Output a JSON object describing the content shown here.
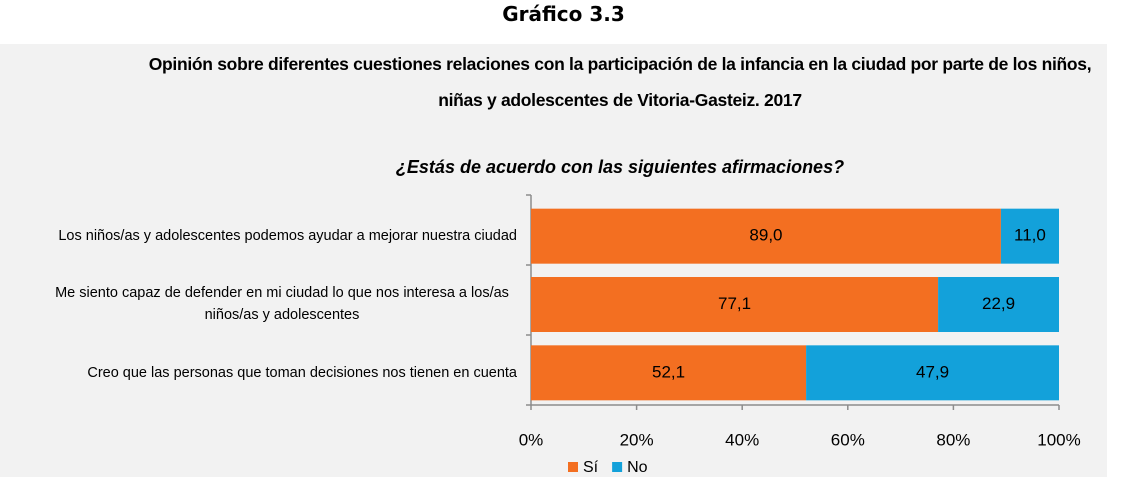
{
  "chart_data": {
    "type": "stacked-bar-horizontal",
    "header": "Gráfico 3.3",
    "title": "Opinión sobre diferentes cuestiones relaciones con la participación de la infancia en la ciudad por parte de los niños, niñas y adolescentes de Vitoria-Gasteiz. 2017",
    "subtitle": "¿Estás de acuerdo con las siguientes afirmaciones?",
    "categories": [
      "Los niños/as y adolescentes podemos ayudar a mejorar nuestra ciudad",
      "Me siento capaz de defender en mi ciudad lo que nos interesa a los/as niños/as y adolescentes",
      "Creo que las personas que toman decisiones nos tienen en cuenta"
    ],
    "series": [
      {
        "name": "Sí",
        "color": "#f36f21",
        "values": [
          89.0,
          77.1,
          52.1
        ],
        "value_labels": [
          "89,0",
          "77,1",
          "52,1"
        ]
      },
      {
        "name": "No",
        "color": "#13a1da",
        "values": [
          11.0,
          22.9,
          47.9
        ],
        "value_labels": [
          "11,0",
          "22,9",
          "47,9"
        ]
      }
    ],
    "xlim": [
      0,
      100
    ],
    "xticks": [
      {
        "value": 0,
        "label": "0%"
      },
      {
        "value": 20,
        "label": "20%"
      },
      {
        "value": 40,
        "label": "40%"
      },
      {
        "value": 60,
        "label": "60%"
      },
      {
        "value": 80,
        "label": "80%"
      },
      {
        "value": 100,
        "label": "100%"
      }
    ],
    "legend": "bottom"
  }
}
